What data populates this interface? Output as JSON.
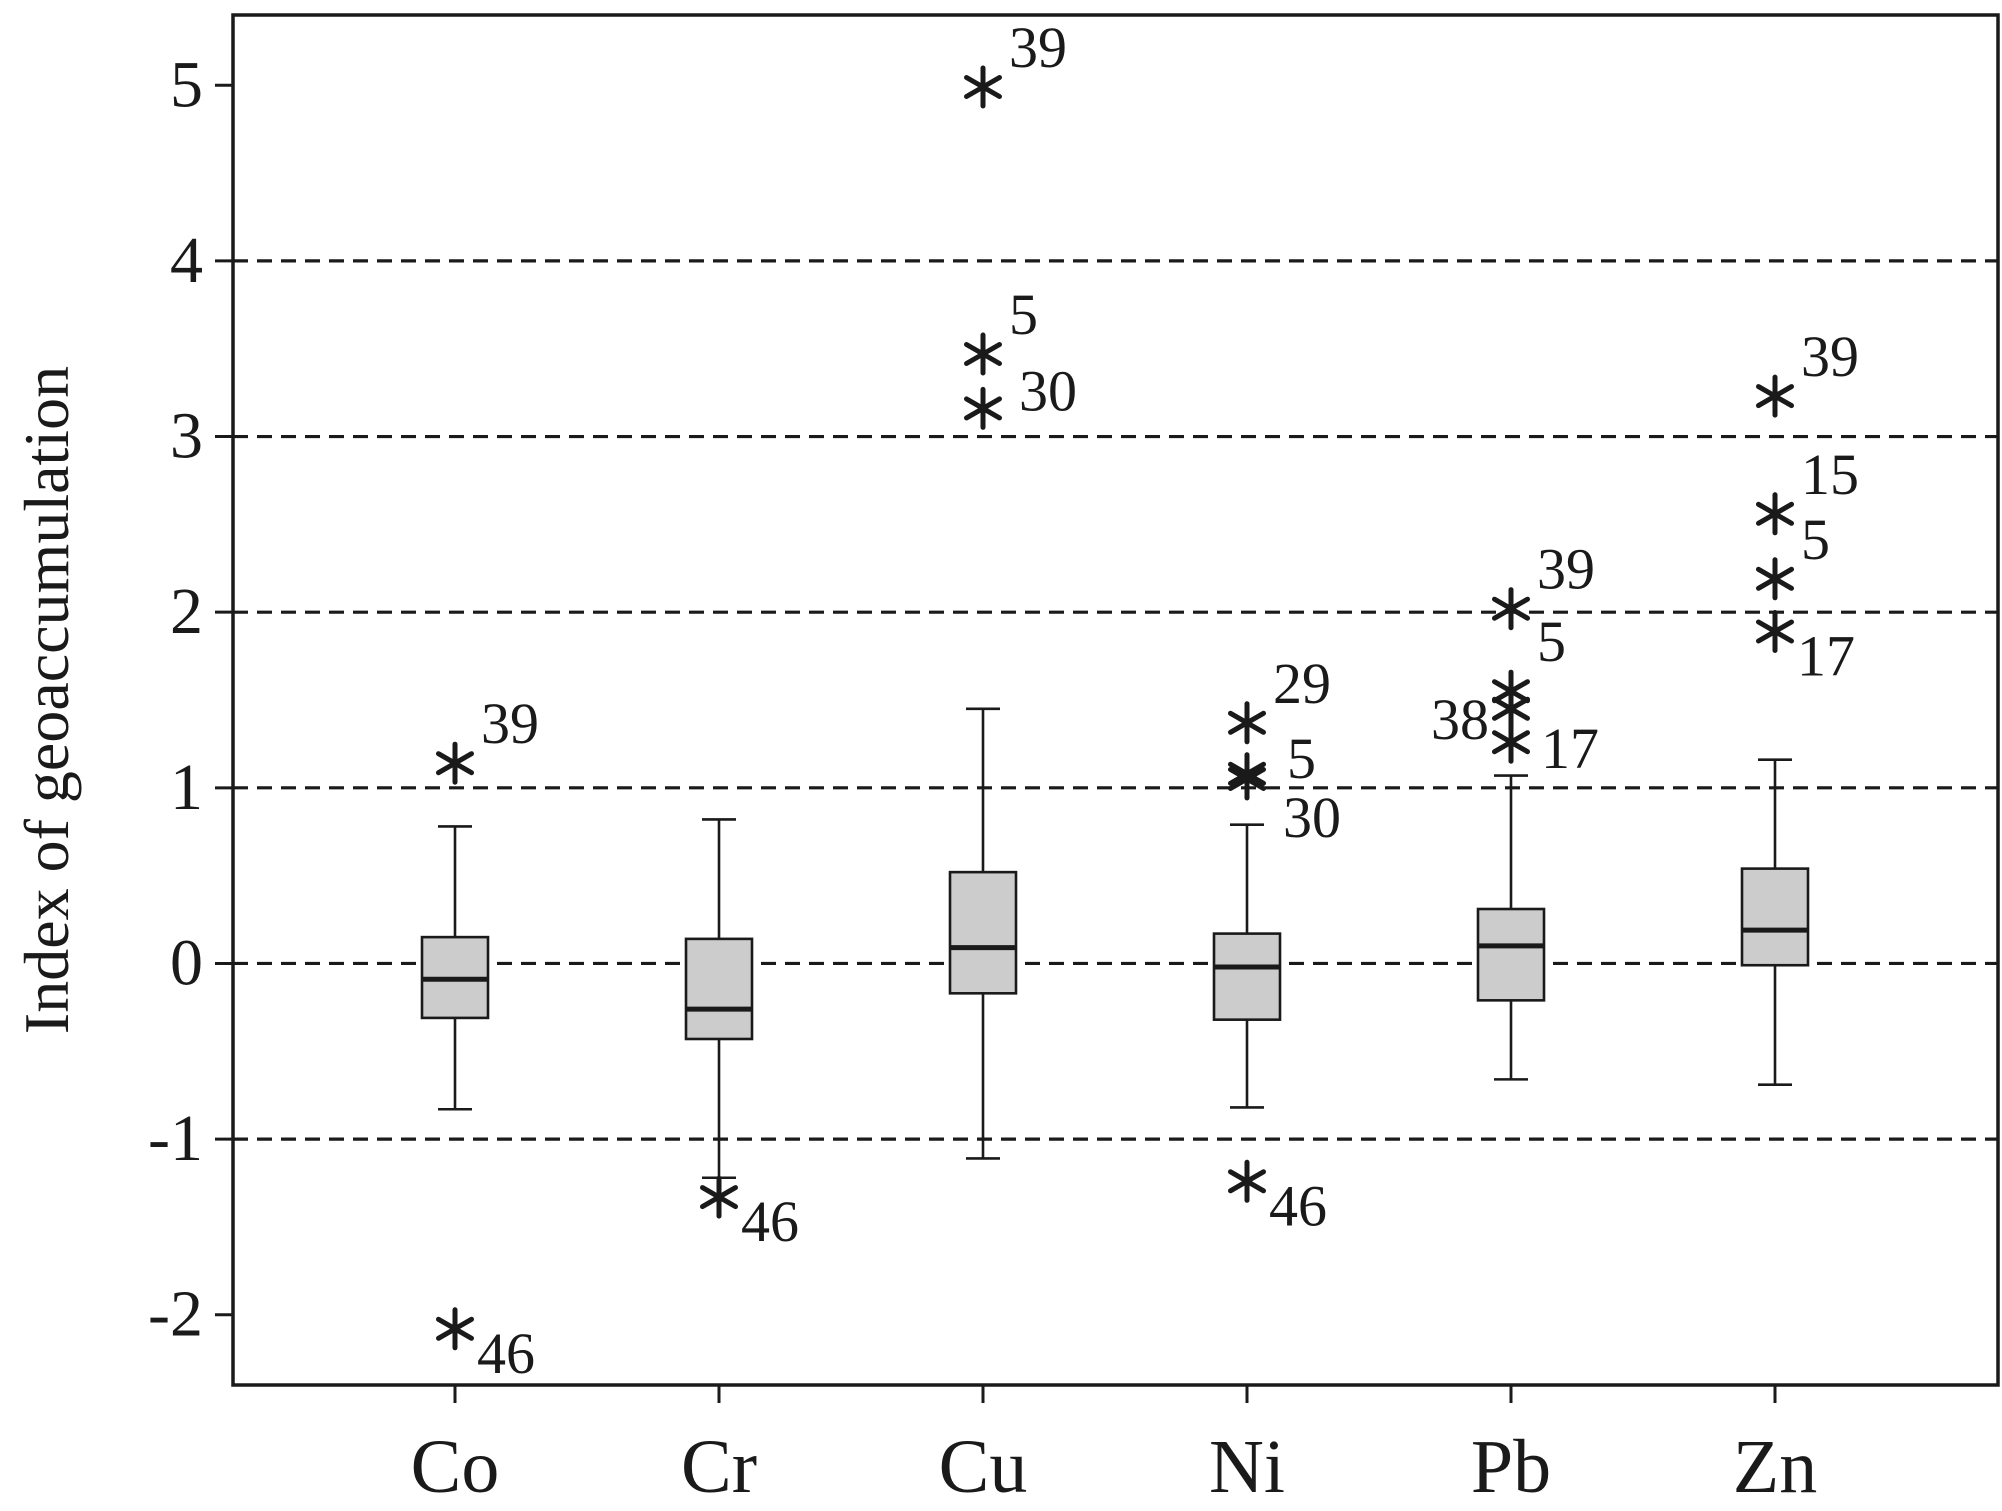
{
  "chart_data": {
    "type": "box",
    "title": "",
    "xlabel": "",
    "ylabel": "Index of geoaccumulation",
    "ylim": [
      -2.4,
      5.4
    ],
    "yticks": [
      -2,
      -1,
      0,
      1,
      2,
      3,
      4,
      5
    ],
    "reference_lines": [
      -1,
      0,
      1,
      2,
      3,
      4
    ],
    "grid": false,
    "legend": "none",
    "colors": {
      "box_fill": "#cccccc",
      "stroke": "#1a1a1a"
    },
    "categories": [
      "Co",
      "Cr",
      "Cu",
      "Ni",
      "Pb",
      "Zn"
    ],
    "boxes": [
      {
        "category": "Co",
        "whisker_low": -0.83,
        "q1": -0.31,
        "median": -0.09,
        "q3": 0.15,
        "whisker_high": 0.78,
        "outliers": [
          {
            "value": 1.14,
            "label": "39"
          },
          {
            "value": -2.08,
            "label": "46"
          }
        ]
      },
      {
        "category": "Cr",
        "whisker_low": -1.22,
        "q1": -0.43,
        "median": -0.26,
        "q3": 0.14,
        "whisker_high": 0.82,
        "outliers": [
          {
            "value": -1.33,
            "label": "46"
          }
        ]
      },
      {
        "category": "Cu",
        "whisker_low": -1.11,
        "q1": -0.17,
        "median": 0.09,
        "q3": 0.52,
        "whisker_high": 1.45,
        "outliers": [
          {
            "value": 4.99,
            "label": "39"
          },
          {
            "value": 3.47,
            "label": "5"
          },
          {
            "value": 3.16,
            "label": "30"
          }
        ]
      },
      {
        "category": "Ni",
        "whisker_low": -0.82,
        "q1": -0.32,
        "median": -0.02,
        "q3": 0.17,
        "whisker_high": 0.79,
        "outliers": [
          {
            "value": 1.37,
            "label": "29"
          },
          {
            "value": 1.08,
            "label": "5"
          },
          {
            "value": 1.05,
            "label": "30"
          },
          {
            "value": -1.24,
            "label": "46"
          }
        ]
      },
      {
        "category": "Pb",
        "whisker_low": -0.66,
        "q1": -0.21,
        "median": 0.1,
        "q3": 0.31,
        "whisker_high": 1.07,
        "outliers": [
          {
            "value": 2.02,
            "label": "39"
          },
          {
            "value": 1.55,
            "label": "5"
          },
          {
            "value": 1.45,
            "label": "38"
          },
          {
            "value": 1.26,
            "label": "17"
          }
        ]
      },
      {
        "category": "Zn",
        "whisker_low": -0.69,
        "q1": -0.01,
        "median": 0.19,
        "q3": 0.54,
        "whisker_high": 1.16,
        "outliers": [
          {
            "value": 3.23,
            "label": "39"
          },
          {
            "value": 2.56,
            "label": "15"
          },
          {
            "value": 2.19,
            "label": "5"
          },
          {
            "value": 1.89,
            "label": "17"
          }
        ]
      }
    ]
  }
}
